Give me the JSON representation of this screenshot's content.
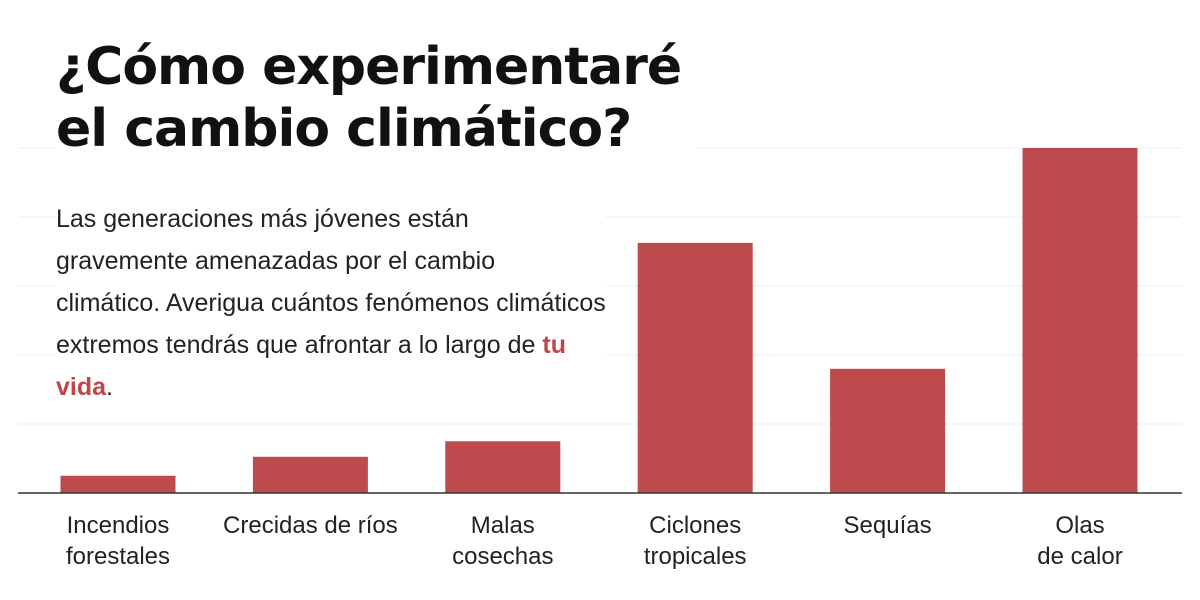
{
  "title": {
    "line1": "¿Cómo experimentaré",
    "line2": "el cambio climático?"
  },
  "subtitle": {
    "text_before": "Las generaciones más jóvenes están gravemente amenazadas por el cambio climático. Averigua cuántos fenómenos climáticos extremos tendrás que afrontar a lo largo de ",
    "highlight": "tu vida",
    "text_after": "."
  },
  "colors": {
    "bar": "#bd4a4d",
    "highlight": "#c0464a",
    "axis": "#333333",
    "grid": "#eceef5"
  },
  "chart_data": {
    "type": "bar",
    "title": "¿Cómo experimentaré el cambio climático?",
    "xlabel": "",
    "ylabel": "",
    "ylim": [
      0,
      100
    ],
    "grid": true,
    "categories": [
      [
        "Incendios",
        "forestales"
      ],
      [
        "Crecidas de ríos"
      ],
      [
        "Malas",
        "cosechas"
      ],
      [
        "Ciclones",
        "tropicales"
      ],
      [
        "Sequías"
      ],
      [
        "Olas",
        "de calor"
      ]
    ],
    "values": [
      5,
      10.5,
      15,
      72.5,
      36,
      100
    ]
  }
}
